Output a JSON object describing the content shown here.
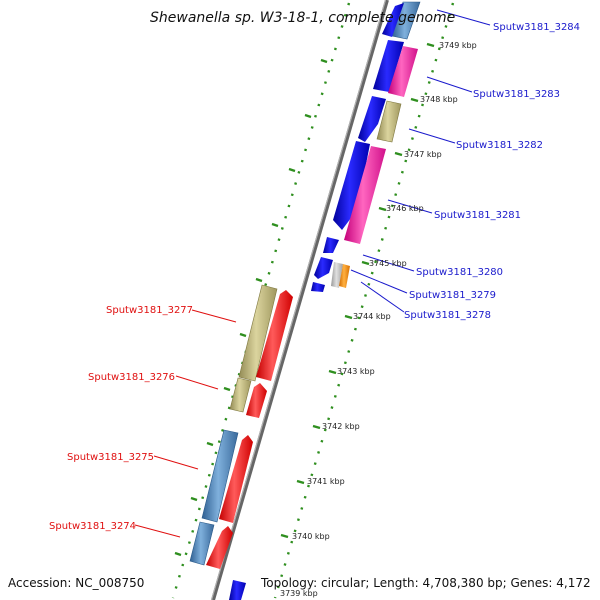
{
  "title": "Shewanella sp. W3-18-1, complete genome",
  "accession": "Accession: NC_008750",
  "topology": "Topology: circular; Length: 4,708,380 bp; Genes: 4,172",
  "colors": {
    "backbone": "#7a7a7a",
    "tick_green": "#2f8f1f",
    "blue": "#0d0de6",
    "steelblue": "#4a80b8",
    "magenta": "#ff2fa0",
    "khaki": "#bdb57a",
    "red": "#ff1a1a",
    "orange": "#ff8c00",
    "grey": "#bbbbbb",
    "label_right": "#1a1acc",
    "label_left": "#e01010"
  },
  "kbp_ticks": [
    "3749 kbp",
    "3748 kbp",
    "3747 kbp",
    "3746 kbp",
    "3745 kbp",
    "3744 kbp",
    "3743 kbp",
    "3742 kbp",
    "3741 kbp",
    "3740 kbp",
    "3739 kbp"
  ],
  "right_labels": [
    "Sputw3181_3284",
    "Sputw3181_3283",
    "Sputw3181_3282",
    "Sputw3181_3281",
    "Sputw3181_3280",
    "Sputw3181_3279",
    "Sputw3181_3278"
  ],
  "left_labels": [
    "Sputw3181_3277",
    "Sputw3181_3276",
    "Sputw3181_3275",
    "Sputw3181_3274"
  ]
}
